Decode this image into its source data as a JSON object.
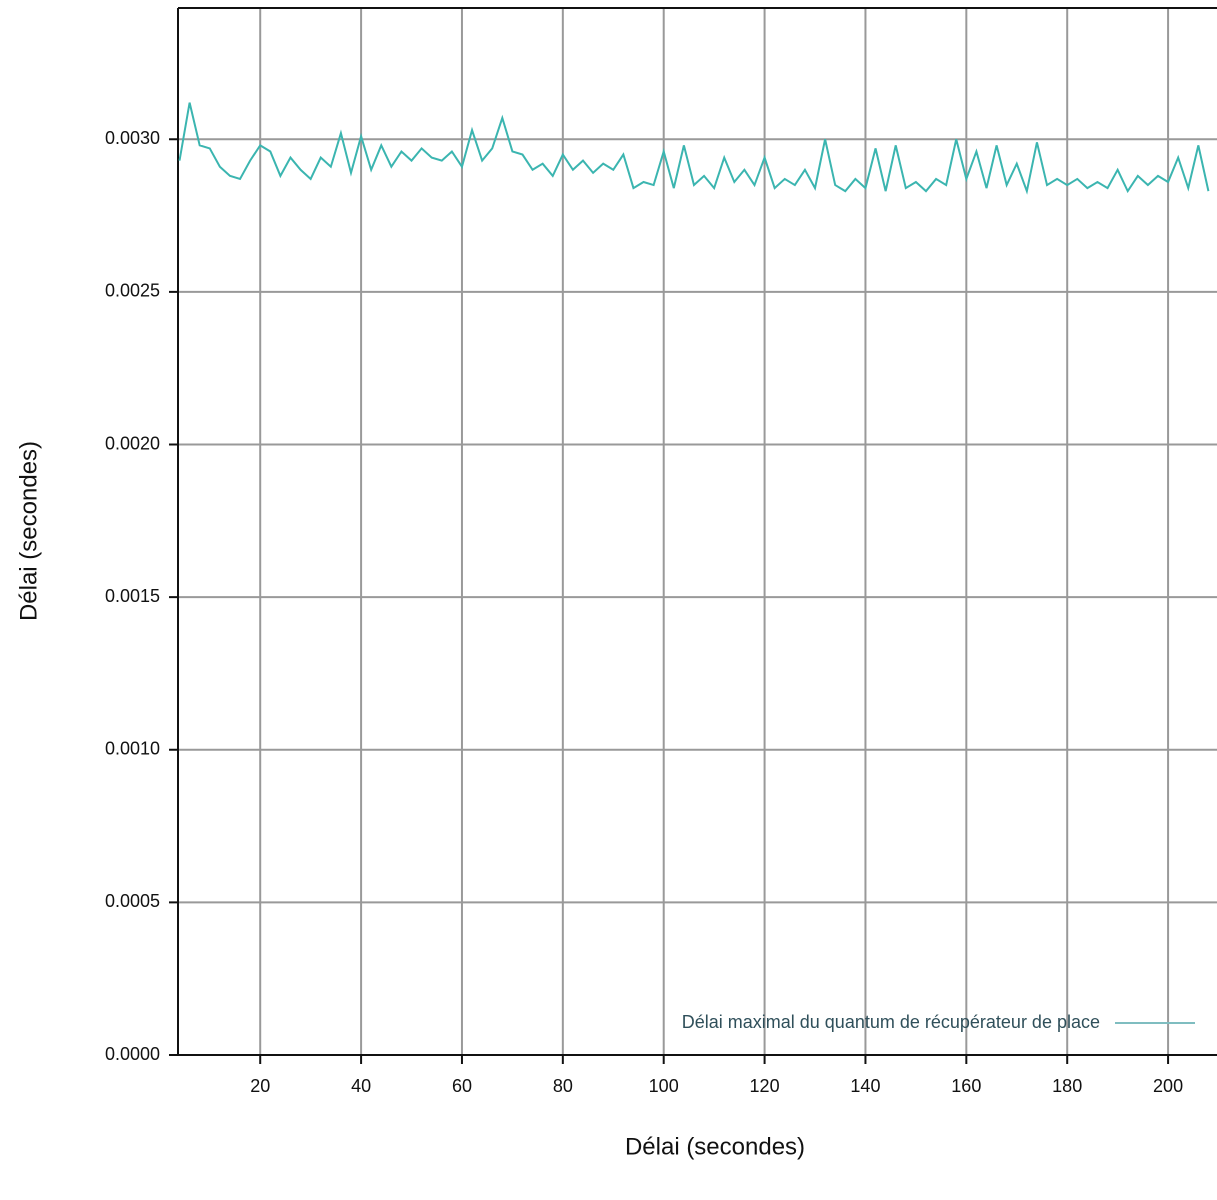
{
  "chart_data": {
    "type": "line",
    "xlabel": "Délai (secondes)",
    "ylabel": "Délai (secondes)",
    "x": [
      4,
      6,
      8,
      10,
      12,
      14,
      16,
      18,
      20,
      22,
      24,
      26,
      28,
      30,
      32,
      34,
      36,
      38,
      40,
      42,
      44,
      46,
      48,
      50,
      52,
      54,
      56,
      58,
      60,
      62,
      64,
      66,
      68,
      70,
      72,
      74,
      76,
      78,
      80,
      82,
      84,
      86,
      88,
      90,
      92,
      94,
      96,
      98,
      100,
      102,
      104,
      106,
      108,
      110,
      112,
      114,
      116,
      118,
      120,
      122,
      124,
      126,
      128,
      130,
      132,
      134,
      136,
      138,
      140,
      142,
      144,
      146,
      148,
      150,
      152,
      154,
      156,
      158,
      160,
      162,
      164,
      166,
      168,
      170,
      172,
      174,
      176,
      178,
      180,
      182,
      184,
      186,
      188,
      190,
      192,
      194,
      196,
      198,
      200,
      202,
      204,
      206,
      208
    ],
    "series": [
      {
        "name": "Délai maximal du quantum de récupérateur de place",
        "color": "#3bb5b0",
        "values": [
          0.00293,
          0.00312,
          0.00298,
          0.00297,
          0.00291,
          0.00288,
          0.00287,
          0.00293,
          0.00298,
          0.00296,
          0.00288,
          0.00294,
          0.0029,
          0.00287,
          0.00294,
          0.00291,
          0.00302,
          0.00289,
          0.00301,
          0.0029,
          0.00298,
          0.00291,
          0.00296,
          0.00293,
          0.00297,
          0.00294,
          0.00293,
          0.00296,
          0.00291,
          0.00303,
          0.00293,
          0.00297,
          0.00307,
          0.00296,
          0.00295,
          0.0029,
          0.00292,
          0.00288,
          0.00295,
          0.0029,
          0.00293,
          0.00289,
          0.00292,
          0.0029,
          0.00295,
          0.00284,
          0.00286,
          0.00285,
          0.00296,
          0.00284,
          0.00298,
          0.00285,
          0.00288,
          0.00284,
          0.00294,
          0.00286,
          0.0029,
          0.00285,
          0.00294,
          0.00284,
          0.00287,
          0.00285,
          0.0029,
          0.00284,
          0.003,
          0.00285,
          0.00283,
          0.00287,
          0.00284,
          0.00297,
          0.00283,
          0.00298,
          0.00284,
          0.00286,
          0.00283,
          0.00287,
          0.00285,
          0.003,
          0.00287,
          0.00296,
          0.00284,
          0.00298,
          0.00285,
          0.00292,
          0.00283,
          0.00299,
          0.00285,
          0.00287,
          0.00285,
          0.00287,
          0.00284,
          0.00286,
          0.00284,
          0.0029,
          0.00283,
          0.00288,
          0.00285,
          0.00288,
          0.00286,
          0.00294,
          0.00284,
          0.00298,
          0.00283
        ]
      }
    ],
    "xlim": [
      3.7,
      209.7
    ],
    "ylim": [
      0,
      0.00343
    ],
    "xticks": [
      20,
      40,
      60,
      80,
      100,
      120,
      140,
      160,
      180,
      200
    ],
    "yticks": [
      {
        "value": 0,
        "label": "0.0000"
      },
      0.0005,
      {
        "value": 0.001,
        "label": "0.0010"
      },
      0.0015,
      {
        "value": 0.002,
        "label": "0.0020"
      },
      0.0025,
      {
        "value": 0.003,
        "label": "0.0030"
      }
    ],
    "grid": true,
    "legend": "lower right"
  }
}
